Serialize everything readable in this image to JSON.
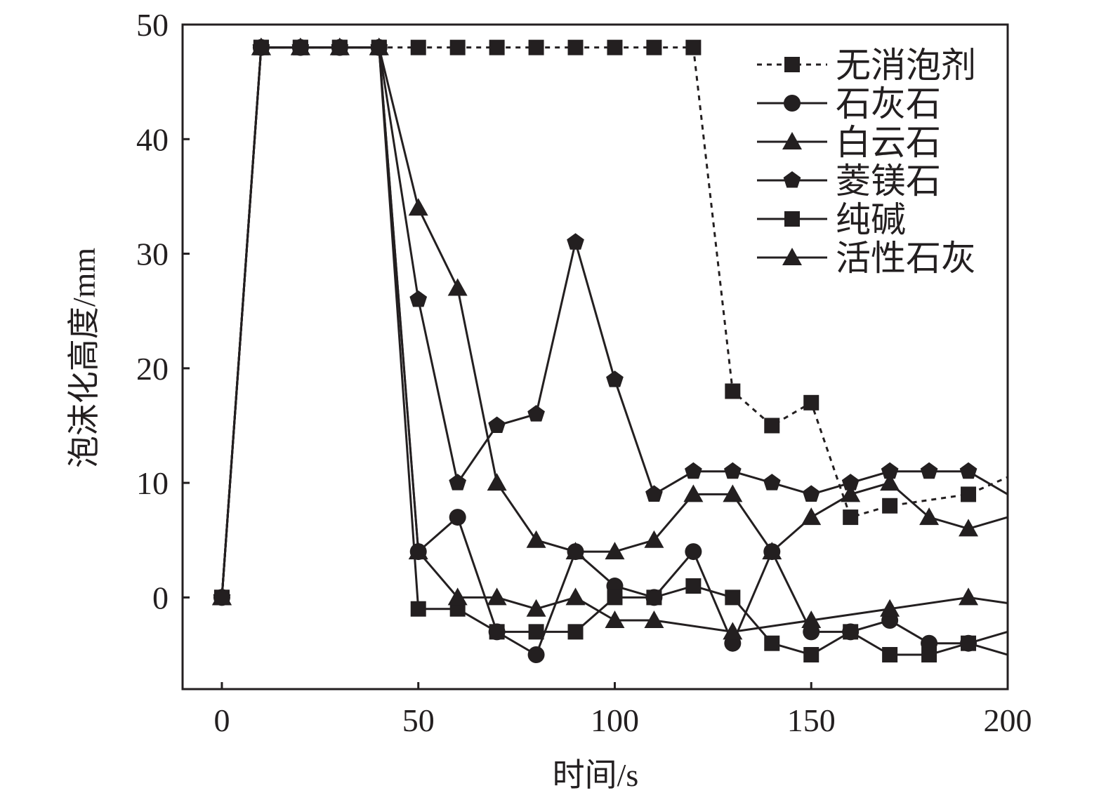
{
  "chart_data": {
    "type": "line",
    "title": "",
    "xlabel": "时间/s",
    "ylabel": "泡沫化高度/mm",
    "xlim": [
      -10,
      200
    ],
    "ylim": [
      -8,
      50
    ],
    "xticks": [
      0,
      50,
      100,
      150,
      200
    ],
    "yticks": [
      0,
      10,
      20,
      30,
      40,
      50
    ],
    "grid": false,
    "legend_position": "top-right",
    "x": [
      0,
      10,
      20,
      30,
      40,
      50,
      60,
      70,
      80,
      90,
      100,
      110,
      120,
      130,
      140,
      150,
      160,
      170,
      180,
      190,
      200
    ],
    "series": [
      {
        "name": "无消泡剂",
        "marker": "square",
        "dashed": true,
        "values": [
          0,
          48,
          48,
          48,
          48,
          48,
          48,
          48,
          48,
          48,
          48,
          48,
          48,
          18,
          15,
          17,
          7,
          8,
          null,
          9,
          10.5
        ]
      },
      {
        "name": "石灰石",
        "marker": "circle",
        "dashed": false,
        "values": [
          0,
          48,
          48,
          48,
          48,
          4,
          7,
          -3,
          -5,
          4,
          1,
          0,
          4,
          -4,
          4,
          -3,
          -3,
          -2,
          -4,
          -4,
          -5
        ]
      },
      {
        "name": "白云石",
        "marker": "triangle",
        "dashed": false,
        "values": [
          0,
          48,
          48,
          48,
          48,
          34,
          27,
          10,
          5,
          4,
          4,
          5,
          9,
          9,
          4,
          7,
          9,
          10,
          7,
          6,
          7
        ]
      },
      {
        "name": "菱镁石",
        "marker": "pentagon",
        "dashed": false,
        "values": [
          0,
          48,
          48,
          48,
          48,
          26,
          10,
          15,
          16,
          31,
          19,
          9,
          11,
          11,
          10,
          9,
          10,
          11,
          11,
          11,
          9
        ]
      },
      {
        "name": "纯碱",
        "marker": "square",
        "dashed": false,
        "values": [
          0,
          48,
          48,
          48,
          48,
          -1,
          -1,
          -3,
          -3,
          -3,
          0,
          0,
          1,
          0,
          -4,
          -5,
          -3,
          -5,
          -5,
          -4,
          -3
        ]
      },
      {
        "name": "活性石灰",
        "marker": "triangle",
        "dashed": false,
        "values": [
          0,
          48,
          48,
          48,
          48,
          4,
          0,
          0,
          -1,
          0,
          -2,
          -2,
          null,
          -3,
          null,
          -2,
          null,
          -1,
          null,
          0,
          -0.5
        ]
      }
    ]
  }
}
